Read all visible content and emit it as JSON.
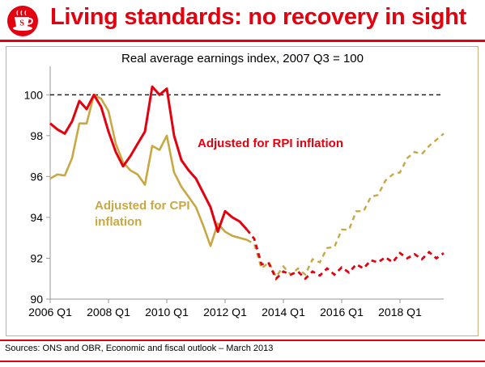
{
  "header": {
    "title": "Living standards: no recovery in sight"
  },
  "footer": {
    "source": "Sources: ONS and OBR, Economic and fiscal outlook – March 2013"
  },
  "colors": {
    "brand_red": "#e3000f",
    "rpi_series": "#e3000f",
    "cpi_series": "#c8a842",
    "frame": "#c9b27a"
  },
  "chart_data": {
    "type": "line",
    "title": "Real average earnings index, 2007 Q3 = 100",
    "xlabel": "",
    "ylabel": "",
    "ylim": [
      90,
      101
    ],
    "yticks": [
      90,
      92,
      94,
      96,
      98,
      100
    ],
    "x_tick_labels": [
      "2006 Q1",
      "2008 Q1",
      "2010 Q1",
      "2012 Q1",
      "2014 Q1",
      "2016 Q1",
      "2018 Q1"
    ],
    "reference_line": {
      "y": 100,
      "style": "dashed"
    },
    "x_start": "2006 Q1",
    "x_end": "2018 Q1",
    "forecast_start": "2012 Q4",
    "series": [
      {
        "name": "Adjusted for RPI inflation",
        "label": "Adjusted for RPI inflation",
        "label_position": "upper-middle",
        "color": "#e3000f",
        "values": [
          98.6,
          98.3,
          98.1,
          98.7,
          99.7,
          99.3,
          100.0,
          99.4,
          98.2,
          97.2,
          96.5,
          97.0,
          97.6,
          98.2,
          100.4,
          100.0,
          100.3,
          98.0,
          96.8,
          96.3,
          95.9,
          95.2,
          94.5,
          93.3,
          94.3,
          94.0,
          93.8,
          93.4,
          92.95,
          91.7,
          91.75,
          91.0,
          91.35,
          91.2,
          91.35,
          91.0,
          91.35,
          91.15,
          91.5,
          91.2,
          91.55,
          91.3,
          91.7,
          91.5,
          91.9,
          91.8,
          92.05,
          91.8,
          92.25,
          92.0,
          92.2,
          91.95,
          92.3,
          92.0,
          92.25
        ]
      },
      {
        "name": "Adjusted for CPI inflation",
        "label": "Adjusted for CPI inflation",
        "label_lines": [
          "Adjusted for CPI",
          "inflation"
        ],
        "label_position": "left-middle",
        "color": "#c8a842",
        "values": [
          95.9,
          96.1,
          96.05,
          96.9,
          98.6,
          98.6,
          100.0,
          99.8,
          99.2,
          97.6,
          96.7,
          96.3,
          96.1,
          95.6,
          97.5,
          97.3,
          98.0,
          96.2,
          95.5,
          95.0,
          94.5,
          93.6,
          92.6,
          93.7,
          93.3,
          93.1,
          93.0,
          92.9,
          92.7,
          91.5,
          91.8,
          91.1,
          91.6,
          91.2,
          91.5,
          91.2,
          91.95,
          91.8,
          92.5,
          92.55,
          93.4,
          93.4,
          94.3,
          94.3,
          95.0,
          95.1,
          95.8,
          96.1,
          96.2,
          96.9,
          97.2,
          97.1,
          97.5,
          97.8,
          98.1
        ]
      }
    ]
  }
}
